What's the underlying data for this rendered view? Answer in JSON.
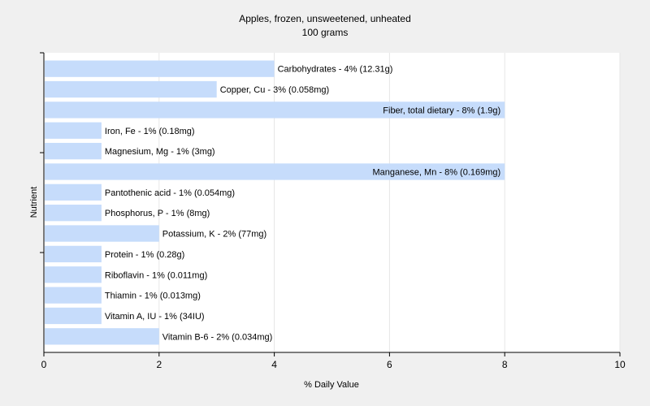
{
  "chart_data": {
    "type": "bar",
    "orientation": "horizontal",
    "title": "Apples, frozen, unsweetened, unheated",
    "subtitle": "100 grams",
    "xlabel": "% Daily Value",
    "ylabel": "Nutrient",
    "xlim": [
      0,
      10
    ],
    "x_ticks": [
      "0",
      "2",
      "4",
      "6",
      "8",
      "10"
    ],
    "grid": "vertical",
    "bar_color": "#c6dcfb",
    "categories": [
      "Carbohydrates",
      "Copper, Cu",
      "Fiber, total dietary",
      "Iron, Fe",
      "Magnesium, Mg",
      "Manganese, Mn",
      "Pantothenic acid",
      "Phosphorus, P",
      "Potassium, K",
      "Protein",
      "Riboflavin",
      "Thiamin",
      "Vitamin A, IU",
      "Vitamin B-6"
    ],
    "values": [
      4,
      3,
      8,
      1,
      1,
      8,
      1,
      1,
      2,
      1,
      1,
      1,
      1,
      2
    ],
    "labels": [
      "Carbohydrates - 4% (12.31g)",
      "Copper, Cu - 3% (0.058mg)",
      "Fiber, total dietary - 8% (1.9g)",
      "Iron, Fe - 1% (0.18mg)",
      "Magnesium, Mg - 1% (3mg)",
      "Manganese, Mn - 8% (0.169mg)",
      "Pantothenic acid - 1% (0.054mg)",
      "Phosphorus, P - 1% (8mg)",
      "Potassium, K - 2% (77mg)",
      "Protein - 1% (0.28g)",
      "Riboflavin - 1% (0.011mg)",
      "Thiamin - 1% (0.013mg)",
      "Vitamin A, IU - 1% (34IU)",
      "Vitamin B-6 - 2% (0.034mg)"
    ]
  }
}
